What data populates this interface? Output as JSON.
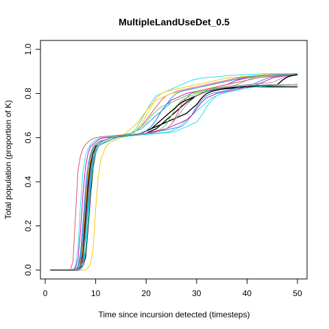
{
  "chart_data": {
    "type": "line",
    "title": "MultipleLandUseDet_0.5",
    "xlabel": "Time since incursion detected (timesteps)",
    "ylabel": "Total population (proportion of K)",
    "xlim": [
      0,
      50
    ],
    "ylim": [
      0,
      1
    ],
    "xticks": [
      "0",
      "10",
      "20",
      "30",
      "40",
      "50"
    ],
    "yticks": [
      "0.0",
      "0.2",
      "0.4",
      "0.6",
      "0.8",
      "1.0"
    ],
    "grid": false,
    "legend": "none",
    "series_colors": [
      "#000000",
      "#DF536B",
      "#61D04F",
      "#2297E6",
      "#28E2E5",
      "#CD0BBC",
      "#F5C710",
      "#9E9E9E"
    ],
    "x": [
      1,
      5,
      5.5,
      6,
      6.5,
      7,
      7.5,
      8,
      8.5,
      9,
      9.5,
      10,
      10.5,
      11,
      12,
      13,
      14,
      15,
      16,
      17,
      18,
      19,
      20,
      21,
      22,
      23,
      24,
      25,
      26,
      27,
      28,
      29,
      30,
      31,
      32,
      33,
      34,
      35,
      36,
      37,
      38,
      39,
      40,
      41,
      42,
      43,
      44,
      45,
      46,
      47,
      48,
      49,
      50
    ],
    "series": [
      {
        "color": "#000000",
        "values": [
          0.0,
          0.0,
          0.0,
          0.0,
          0.01,
          0.02,
          0.04,
          0.18,
          0.3,
          0.42,
          0.5,
          0.54,
          0.56,
          0.57,
          0.58,
          0.59,
          0.6,
          0.605,
          0.608,
          0.61,
          0.612,
          0.615,
          0.62,
          0.63,
          0.64,
          0.66,
          0.68,
          0.7,
          0.72,
          0.74,
          0.76,
          0.775,
          0.79,
          0.8,
          0.81,
          0.815,
          0.82,
          0.823,
          0.825,
          0.826,
          0.827,
          0.828,
          0.829,
          0.83,
          0.83,
          0.83,
          0.83,
          0.83,
          0.83,
          0.83,
          0.83,
          0.83,
          0.83
        ]
      },
      {
        "color": "#000000",
        "values": [
          0.0,
          0.0,
          0.0,
          0.0,
          0.0,
          0.01,
          0.02,
          0.06,
          0.2,
          0.35,
          0.47,
          0.53,
          0.56,
          0.57,
          0.58,
          0.59,
          0.6,
          0.605,
          0.608,
          0.61,
          0.615,
          0.62,
          0.63,
          0.64,
          0.65,
          0.66,
          0.67,
          0.68,
          0.69,
          0.7,
          0.71,
          0.73,
          0.75,
          0.78,
          0.8,
          0.81,
          0.815,
          0.82,
          0.822,
          0.824,
          0.826,
          0.828,
          0.83,
          0.831,
          0.832,
          0.833,
          0.834,
          0.835,
          0.836,
          0.837,
          0.838,
          0.839,
          0.84
        ]
      },
      {
        "color": "#DF536B",
        "values": [
          0.0,
          0.0,
          0.04,
          0.25,
          0.45,
          0.52,
          0.55,
          0.57,
          0.58,
          0.59,
          0.595,
          0.6,
          0.602,
          0.604,
          0.606,
          0.608,
          0.61,
          0.612,
          0.615,
          0.62,
          0.63,
          0.65,
          0.68,
          0.71,
          0.74,
          0.77,
          0.79,
          0.8,
          0.81,
          0.815,
          0.82,
          0.825,
          0.83,
          0.835,
          0.84,
          0.845,
          0.85,
          0.855,
          0.86,
          0.865,
          0.87,
          0.873,
          0.876,
          0.878,
          0.88,
          0.882,
          0.884,
          0.885,
          0.886,
          0.887,
          0.888,
          0.889,
          0.89
        ]
      },
      {
        "color": "#61D04F",
        "values": [
          0.0,
          0.0,
          0.0,
          0.0,
          0.01,
          0.04,
          0.12,
          0.3,
          0.42,
          0.5,
          0.54,
          0.56,
          0.57,
          0.58,
          0.59,
          0.6,
          0.605,
          0.61,
          0.612,
          0.614,
          0.616,
          0.618,
          0.62,
          0.625,
          0.63,
          0.64,
          0.66,
          0.7,
          0.74,
          0.77,
          0.78,
          0.79,
          0.8,
          0.805,
          0.81,
          0.815,
          0.82,
          0.825,
          0.83,
          0.835,
          0.84,
          0.85,
          0.86,
          0.87,
          0.875,
          0.878,
          0.88,
          0.882,
          0.884,
          0.885,
          0.886,
          0.887,
          0.888
        ]
      },
      {
        "color": "#2297E6",
        "values": [
          0.0,
          0.0,
          0.0,
          0.0,
          0.02,
          0.08,
          0.22,
          0.38,
          0.48,
          0.53,
          0.56,
          0.57,
          0.58,
          0.585,
          0.59,
          0.6,
          0.605,
          0.61,
          0.615,
          0.62,
          0.63,
          0.64,
          0.66,
          0.68,
          0.7,
          0.72,
          0.74,
          0.76,
          0.77,
          0.78,
          0.79,
          0.8,
          0.81,
          0.815,
          0.82,
          0.825,
          0.83,
          0.835,
          0.84,
          0.85,
          0.86,
          0.87,
          0.875,
          0.88,
          0.882,
          0.884,
          0.885,
          0.886,
          0.887,
          0.888,
          0.889,
          0.89,
          0.89
        ]
      },
      {
        "color": "#28E2E5",
        "values": [
          0.0,
          0.0,
          0.0,
          0.02,
          0.1,
          0.3,
          0.45,
          0.52,
          0.55,
          0.57,
          0.58,
          0.59,
          0.595,
          0.6,
          0.602,
          0.604,
          0.606,
          0.608,
          0.61,
          0.62,
          0.64,
          0.68,
          0.72,
          0.76,
          0.79,
          0.8,
          0.81,
          0.82,
          0.83,
          0.84,
          0.85,
          0.86,
          0.865,
          0.87,
          0.872,
          0.874,
          0.876,
          0.878,
          0.88,
          0.882,
          0.884,
          0.885,
          0.886,
          0.887,
          0.888,
          0.889,
          0.89,
          0.89,
          0.89,
          0.89,
          0.89,
          0.89,
          0.89
        ]
      },
      {
        "color": "#28E2E5",
        "values": [
          0.0,
          0.0,
          0.0,
          0.0,
          0.0,
          0.01,
          0.03,
          0.1,
          0.25,
          0.4,
          0.5,
          0.54,
          0.56,
          0.57,
          0.58,
          0.59,
          0.6,
          0.605,
          0.608,
          0.61,
          0.612,
          0.614,
          0.616,
          0.618,
          0.62,
          0.622,
          0.625,
          0.63,
          0.64,
          0.66,
          0.68,
          0.7,
          0.72,
          0.74,
          0.76,
          0.78,
          0.79,
          0.8,
          0.805,
          0.81,
          0.815,
          0.82,
          0.825,
          0.828,
          0.83,
          0.832,
          0.834,
          0.835,
          0.836,
          0.837,
          0.838,
          0.839,
          0.84
        ]
      },
      {
        "color": "#CD0BBC",
        "values": [
          0.0,
          0.0,
          0.0,
          0.01,
          0.05,
          0.18,
          0.35,
          0.47,
          0.53,
          0.56,
          0.57,
          0.58,
          0.59,
          0.595,
          0.6,
          0.602,
          0.604,
          0.606,
          0.608,
          0.61,
          0.615,
          0.62,
          0.63,
          0.65,
          0.68,
          0.72,
          0.75,
          0.77,
          0.78,
          0.79,
          0.8,
          0.805,
          0.81,
          0.815,
          0.82,
          0.825,
          0.83,
          0.835,
          0.84,
          0.85,
          0.86,
          0.865,
          0.87,
          0.873,
          0.876,
          0.878,
          0.88,
          0.882,
          0.884,
          0.885,
          0.886,
          0.887,
          0.888
        ]
      },
      {
        "color": "#F5C710",
        "values": [
          0.0,
          0.0,
          0.0,
          0.0,
          0.0,
          0.0,
          0.0,
          0.0,
          0.01,
          0.03,
          0.1,
          0.28,
          0.42,
          0.5,
          0.56,
          0.58,
          0.59,
          0.6,
          0.605,
          0.61,
          0.63,
          0.66,
          0.7,
          0.74,
          0.78,
          0.8,
          0.81,
          0.815,
          0.82,
          0.825,
          0.83,
          0.835,
          0.84,
          0.845,
          0.85,
          0.855,
          0.86,
          0.865,
          0.87,
          0.872,
          0.874,
          0.876,
          0.878,
          0.88,
          0.882,
          0.884,
          0.885,
          0.886,
          0.887,
          0.888,
          0.889,
          0.89,
          0.89
        ]
      },
      {
        "color": "#9E9E9E",
        "values": [
          0.0,
          0.0,
          0.0,
          0.0,
          0.01,
          0.05,
          0.2,
          0.38,
          0.48,
          0.53,
          0.56,
          0.57,
          0.58,
          0.585,
          0.59,
          0.6,
          0.605,
          0.61,
          0.612,
          0.614,
          0.616,
          0.62,
          0.63,
          0.64,
          0.66,
          0.68,
          0.7,
          0.72,
          0.74,
          0.76,
          0.78,
          0.8,
          0.81,
          0.815,
          0.82,
          0.823,
          0.826,
          0.829,
          0.832,
          0.834,
          0.836,
          0.838,
          0.84,
          0.842,
          0.844,
          0.846,
          0.848,
          0.85,
          0.86,
          0.87,
          0.875,
          0.88,
          0.885
        ]
      },
      {
        "color": "#2297E6",
        "values": [
          0.0,
          0.0,
          0.0,
          0.0,
          0.0,
          0.02,
          0.06,
          0.15,
          0.3,
          0.42,
          0.5,
          0.54,
          0.56,
          0.57,
          0.58,
          0.59,
          0.6,
          0.603,
          0.606,
          0.609,
          0.612,
          0.615,
          0.618,
          0.622,
          0.626,
          0.63,
          0.635,
          0.64,
          0.645,
          0.65,
          0.67,
          0.7,
          0.74,
          0.77,
          0.79,
          0.8,
          0.805,
          0.81,
          0.815,
          0.82,
          0.825,
          0.83,
          0.835,
          0.84,
          0.85,
          0.86,
          0.87,
          0.875,
          0.878,
          0.88,
          0.882,
          0.884,
          0.886
        ]
      },
      {
        "color": "#DF536B",
        "values": [
          0.0,
          0.0,
          0.0,
          0.0,
          0.01,
          0.04,
          0.14,
          0.32,
          0.44,
          0.51,
          0.55,
          0.57,
          0.58,
          0.585,
          0.59,
          0.6,
          0.605,
          0.608,
          0.61,
          0.612,
          0.614,
          0.616,
          0.618,
          0.62,
          0.625,
          0.63,
          0.64,
          0.66,
          0.7,
          0.75,
          0.78,
          0.8,
          0.81,
          0.815,
          0.82,
          0.825,
          0.83,
          0.835,
          0.84,
          0.845,
          0.85,
          0.855,
          0.86,
          0.865,
          0.87,
          0.873,
          0.876,
          0.878,
          0.88,
          0.882,
          0.884,
          0.886,
          0.888
        ]
      },
      {
        "color": "#61D04F",
        "values": [
          0.0,
          0.0,
          0.0,
          0.0,
          0.0,
          0.03,
          0.1,
          0.26,
          0.4,
          0.49,
          0.54,
          0.56,
          0.57,
          0.58,
          0.59,
          0.6,
          0.605,
          0.61,
          0.615,
          0.62,
          0.63,
          0.65,
          0.67,
          0.7,
          0.72,
          0.74,
          0.75,
          0.76,
          0.77,
          0.78,
          0.79,
          0.8,
          0.805,
          0.81,
          0.815,
          0.82,
          0.823,
          0.826,
          0.828,
          0.83,
          0.832,
          0.834,
          0.835,
          0.836,
          0.837,
          0.838,
          0.839,
          0.84,
          0.84,
          0.84,
          0.84,
          0.84,
          0.84
        ]
      },
      {
        "color": "#CD0BBC",
        "values": [
          0.0,
          0.0,
          0.0,
          0.0,
          0.0,
          0.01,
          0.05,
          0.2,
          0.36,
          0.47,
          0.53,
          0.56,
          0.57,
          0.58,
          0.59,
          0.6,
          0.603,
          0.606,
          0.609,
          0.612,
          0.615,
          0.618,
          0.62,
          0.625,
          0.63,
          0.635,
          0.64,
          0.65,
          0.66,
          0.67,
          0.68,
          0.7,
          0.73,
          0.76,
          0.78,
          0.79,
          0.8,
          0.805,
          0.81,
          0.815,
          0.82,
          0.825,
          0.83,
          0.835,
          0.84,
          0.85,
          0.86,
          0.87,
          0.875,
          0.878,
          0.88,
          0.882,
          0.884
        ]
      },
      {
        "color": "#28E2E5",
        "values": [
          0.0,
          0.0,
          0.0,
          0.0,
          0.0,
          0.0,
          0.02,
          0.08,
          0.22,
          0.38,
          0.48,
          0.53,
          0.56,
          0.57,
          0.58,
          0.59,
          0.6,
          0.603,
          0.606,
          0.608,
          0.61,
          0.612,
          0.614,
          0.616,
          0.618,
          0.62,
          0.622,
          0.625,
          0.63,
          0.64,
          0.65,
          0.66,
          0.67,
          0.7,
          0.74,
          0.77,
          0.79,
          0.8,
          0.805,
          0.81,
          0.815,
          0.82,
          0.825,
          0.828,
          0.83,
          0.832,
          0.834,
          0.835,
          0.836,
          0.837,
          0.838,
          0.839,
          0.84
        ]
      },
      {
        "color": "#F5C710",
        "values": [
          0.0,
          0.0,
          0.0,
          0.0,
          0.01,
          0.03,
          0.1,
          0.28,
          0.42,
          0.5,
          0.54,
          0.56,
          0.57,
          0.58,
          0.59,
          0.6,
          0.605,
          0.61,
          0.62,
          0.64,
          0.66,
          0.69,
          0.72,
          0.75,
          0.77,
          0.78,
          0.79,
          0.8,
          0.805,
          0.81,
          0.815,
          0.82,
          0.825,
          0.83,
          0.835,
          0.84,
          0.845,
          0.85,
          0.855,
          0.86,
          0.865,
          0.87,
          0.872,
          0.874,
          0.876,
          0.878,
          0.88,
          0.882,
          0.884,
          0.885,
          0.886,
          0.887,
          0.888
        ]
      },
      {
        "color": "#000000",
        "values": [
          0.0,
          0.0,
          0.0,
          0.0,
          0.0,
          0.02,
          0.08,
          0.24,
          0.39,
          0.48,
          0.53,
          0.56,
          0.57,
          0.58,
          0.59,
          0.6,
          0.603,
          0.606,
          0.609,
          0.612,
          0.615,
          0.62,
          0.63,
          0.64,
          0.66,
          0.68,
          0.7,
          0.72,
          0.74,
          0.76,
          0.77,
          0.78,
          0.79,
          0.8,
          0.81,
          0.815,
          0.82,
          0.823,
          0.826,
          0.828,
          0.83,
          0.832,
          0.834,
          0.835,
          0.836,
          0.837,
          0.838,
          0.839,
          0.84,
          0.86,
          0.875,
          0.882,
          0.885
        ]
      },
      {
        "color": "#2297E6",
        "values": [
          0.0,
          0.0,
          0.0,
          0.0,
          0.01,
          0.06,
          0.18,
          0.36,
          0.47,
          0.52,
          0.55,
          0.57,
          0.58,
          0.585,
          0.59,
          0.6,
          0.605,
          0.61,
          0.612,
          0.614,
          0.616,
          0.62,
          0.63,
          0.65,
          0.68,
          0.72,
          0.75,
          0.78,
          0.8,
          0.81,
          0.815,
          0.82,
          0.825,
          0.83,
          0.835,
          0.84,
          0.845,
          0.85,
          0.855,
          0.86,
          0.865,
          0.87,
          0.873,
          0.876,
          0.878,
          0.88,
          0.882,
          0.884,
          0.885,
          0.886,
          0.887,
          0.888,
          0.889
        ]
      },
      {
        "color": "#9E9E9E",
        "values": [
          0.0,
          0.0,
          0.0,
          0.0,
          0.0,
          0.02,
          0.06,
          0.18,
          0.34,
          0.45,
          0.52,
          0.55,
          0.57,
          0.58,
          0.59,
          0.6,
          0.603,
          0.606,
          0.609,
          0.612,
          0.615,
          0.618,
          0.62,
          0.622,
          0.625,
          0.63,
          0.64,
          0.66,
          0.69,
          0.72,
          0.75,
          0.77,
          0.79,
          0.8,
          0.81,
          0.815,
          0.82,
          0.825,
          0.828,
          0.83,
          0.832,
          0.834,
          0.835,
          0.836,
          0.837,
          0.838,
          0.839,
          0.84,
          0.84,
          0.84,
          0.84,
          0.84,
          0.84
        ]
      }
    ]
  }
}
